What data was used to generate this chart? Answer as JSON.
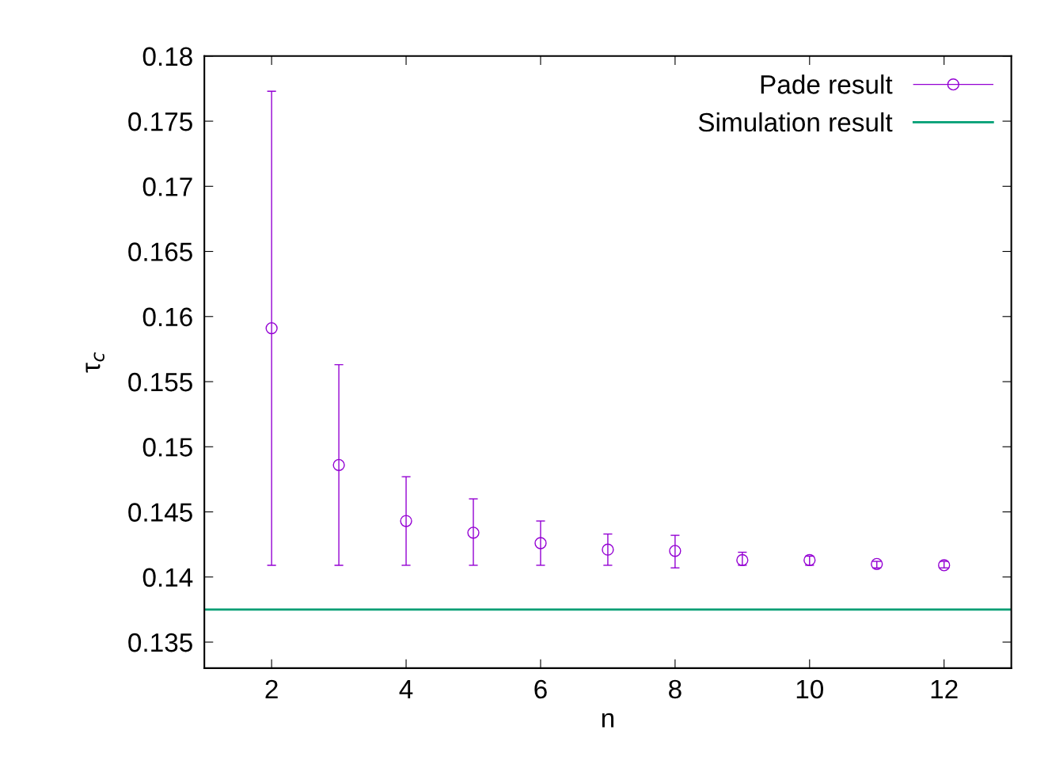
{
  "chart_data": {
    "type": "scatter",
    "xlabel": "n",
    "ylabel": "τ$_{c}$",
    "x": [
      2,
      3,
      4,
      5,
      6,
      7,
      8,
      9,
      10,
      11,
      12
    ],
    "series": [
      {
        "name": "Pade result",
        "color": "#9400d3",
        "marker": "circle",
        "values": [
          0.1591,
          0.1486,
          0.1443,
          0.1434,
          0.1426,
          0.1421,
          0.142,
          0.1413,
          0.1413,
          0.141,
          0.1409
        ],
        "errors": [
          [
            0.1409,
            0.1773
          ],
          [
            0.1409,
            0.1563
          ],
          [
            0.1409,
            0.1477
          ],
          [
            0.1409,
            0.146
          ],
          [
            0.1409,
            0.1443
          ],
          [
            0.1409,
            0.1433
          ],
          [
            0.1407,
            0.1432
          ],
          [
            0.1409,
            0.1419
          ],
          [
            0.1409,
            0.1416
          ],
          [
            0.1407,
            0.1412
          ],
          [
            0.1407,
            0.1412
          ]
        ]
      }
    ],
    "ref_lines": [
      {
        "axis": "y",
        "value": 0.1375,
        "label": "Simulation result",
        "color": "#009e73",
        "line_style": "solid"
      }
    ],
    "xlim": [
      1,
      13
    ],
    "ylim": [
      0.133,
      0.18
    ],
    "xticks": [
      2,
      4,
      6,
      8,
      10,
      12
    ],
    "yticks": [
      0.135,
      0.14,
      0.145,
      0.15,
      0.155,
      0.16,
      0.165,
      0.17,
      0.175,
      0.18
    ],
    "grid": false,
    "legend": "top right"
  }
}
